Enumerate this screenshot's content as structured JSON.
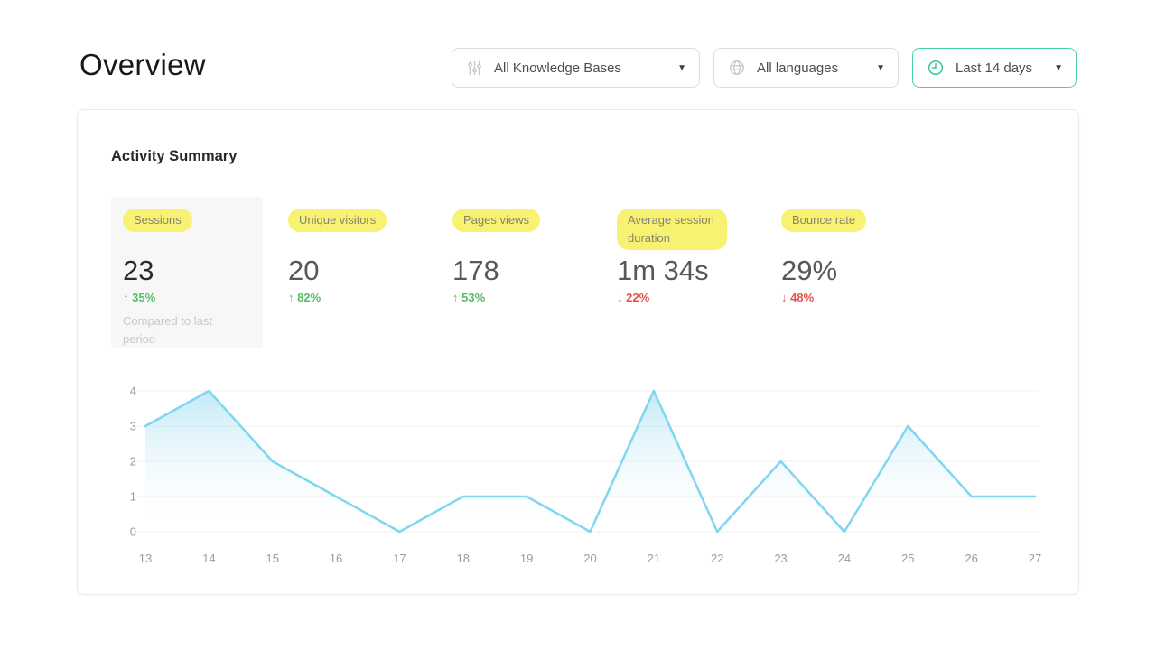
{
  "page": {
    "title": "Overview"
  },
  "filters": {
    "knowledge_bases": {
      "label": "All Knowledge Bases",
      "icon": "sliders-icon"
    },
    "languages": {
      "label": "All languages",
      "icon": "globe-icon"
    },
    "date_range": {
      "label": "Last 14 days",
      "icon": "clock-icon",
      "accent_color": "#4ad3a2"
    }
  },
  "card": {
    "title": "Activity Summary",
    "metrics": [
      {
        "label": "Sessions",
        "value": "23",
        "arrow": "↑",
        "change": "35%",
        "direction": "up",
        "note": "Compared to last period",
        "selected": true
      },
      {
        "label": "Unique visitors",
        "value": "20",
        "arrow": "↑",
        "change": "82%",
        "direction": "up"
      },
      {
        "label": "Pages views",
        "value": "178",
        "arrow": "↑",
        "change": "53%",
        "direction": "up"
      },
      {
        "label": "Average session duration",
        "value": "1m 34s",
        "arrow": "↓",
        "change": "22%",
        "direction": "down"
      },
      {
        "label": "Bounce rate",
        "value": "29%",
        "arrow": "↓",
        "change": "48%",
        "direction": "down"
      }
    ],
    "highlight_color": "#f8f272",
    "up_color": "#57bf63",
    "down_color": "#e4544b"
  },
  "chart_data": {
    "type": "area",
    "categories": [
      13,
      14,
      15,
      16,
      17,
      18,
      19,
      20,
      21,
      22,
      23,
      24,
      25,
      26,
      27
    ],
    "values": [
      3,
      4,
      2,
      1,
      0,
      1,
      1,
      0,
      4,
      0,
      2,
      0,
      3,
      1,
      1
    ],
    "title": "",
    "xlabel": "",
    "ylabel": "",
    "ylim": [
      0,
      4
    ],
    "yticks": [
      0,
      1,
      2,
      3,
      4
    ],
    "grid": true,
    "legend": false,
    "line_color": "#7fd6f0",
    "fill_top": "#8fd8f0",
    "fill_bottom": "#ffffff",
    "grid_color": "#f0f0f0"
  }
}
